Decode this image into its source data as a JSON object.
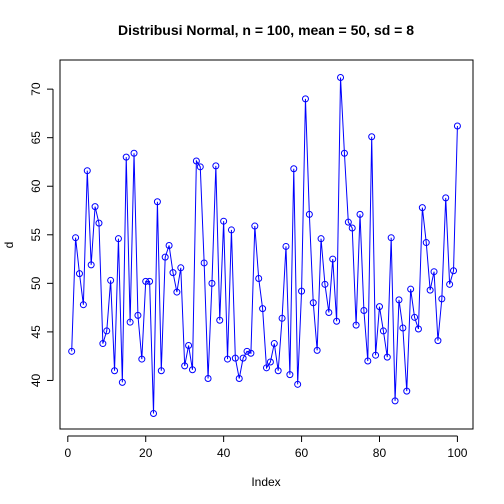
{
  "chart_data": {
    "type": "line",
    "title": "Distribusi Normal, n = 100, mean = 50, sd = 8",
    "xlabel": "Index",
    "ylabel": "d",
    "xlim": [
      -2,
      104
    ],
    "ylim": [
      35,
      73
    ],
    "xticks": [
      0,
      20,
      40,
      60,
      80,
      100
    ],
    "yticks": [
      40,
      45,
      50,
      55,
      60,
      65,
      70
    ],
    "grid": false,
    "series_color": "#0000ff",
    "markers": "open-circle",
    "x": [
      1,
      2,
      3,
      4,
      5,
      6,
      7,
      8,
      9,
      10,
      11,
      12,
      13,
      14,
      15,
      16,
      17,
      18,
      19,
      20,
      21,
      22,
      23,
      24,
      25,
      26,
      27,
      28,
      29,
      30,
      31,
      32,
      33,
      34,
      35,
      36,
      37,
      38,
      39,
      40,
      41,
      42,
      43,
      44,
      45,
      46,
      47,
      48,
      49,
      50,
      51,
      52,
      53,
      54,
      55,
      56,
      57,
      58,
      59,
      60,
      61,
      62,
      63,
      64,
      65,
      66,
      67,
      68,
      69,
      70,
      71,
      72,
      73,
      74,
      75,
      76,
      77,
      78,
      79,
      80,
      81,
      82,
      83,
      84,
      85,
      86,
      87,
      88,
      89,
      90,
      91,
      92,
      93,
      94,
      95,
      96,
      97,
      98,
      99,
      100
    ],
    "y": [
      43.0,
      54.7,
      51.0,
      47.8,
      61.6,
      51.9,
      57.9,
      56.2,
      43.8,
      45.1,
      50.3,
      41.0,
      54.6,
      39.8,
      63.0,
      46.0,
      63.4,
      46.7,
      42.2,
      50.2,
      50.2,
      36.6,
      58.4,
      41.0,
      52.7,
      53.9,
      51.1,
      49.1,
      51.6,
      41.5,
      43.6,
      41.1,
      62.6,
      62.0,
      52.1,
      40.2,
      50.0,
      62.1,
      46.2,
      56.4,
      42.2,
      55.5,
      42.3,
      40.2,
      42.3,
      43.0,
      42.8,
      55.9,
      50.5,
      47.4,
      41.3,
      41.9,
      43.8,
      41.0,
      46.4,
      53.8,
      40.6,
      61.8,
      39.6,
      49.2,
      69.0,
      57.1,
      48.0,
      43.1,
      54.6,
      49.9,
      47.0,
      52.5,
      46.1,
      71.2,
      63.4,
      56.3,
      55.7,
      45.7,
      57.1,
      47.2,
      42.0,
      65.1,
      42.6,
      47.6,
      45.1,
      42.4,
      54.7,
      37.9,
      48.3,
      45.4,
      38.9,
      49.4,
      46.5,
      45.3,
      57.8,
      54.2,
      49.3,
      51.2,
      44.1,
      48.4,
      58.8,
      49.9,
      51.3,
      66.2
    ]
  }
}
